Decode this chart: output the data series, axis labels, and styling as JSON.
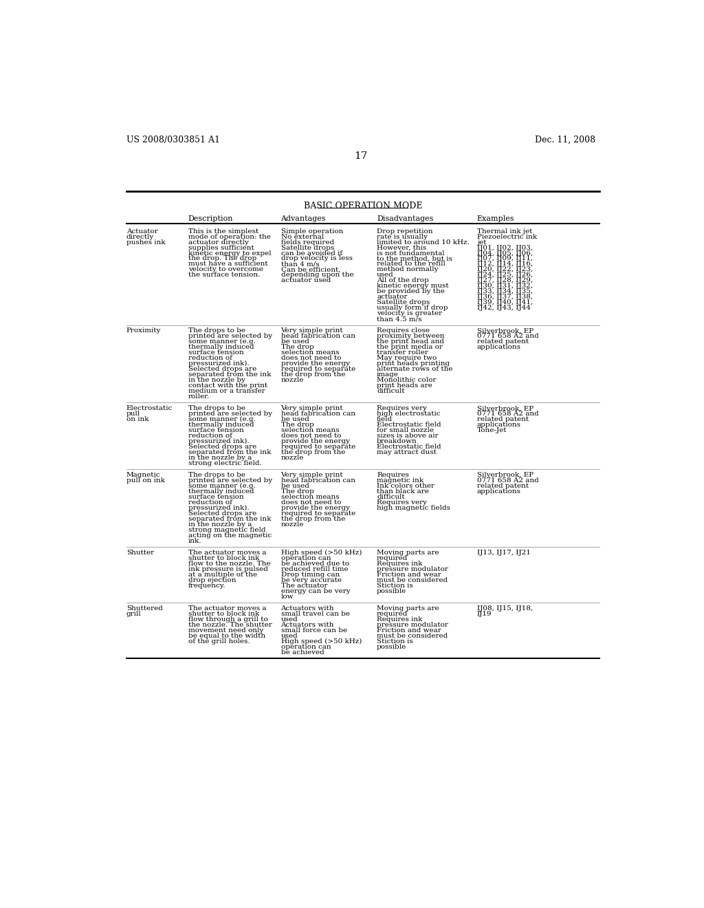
{
  "header_left": "US 2008/0303851 A1",
  "header_right": "Dec. 11, 2008",
  "page_number": "17",
  "table_title": "BASIC OPERATION MODE",
  "col_headers": [
    "Description",
    "Advantages",
    "Disadvantages",
    "Examples"
  ],
  "bg_color": "#ffffff",
  "text_color": "#000000",
  "font_size": 7.5,
  "rows": [
    {
      "mode": "Actuator\ndirectly\npushes ink",
      "description": "This is the simplest\nmode of operation: the\nactuator directly\nsupplies sufficient\nkinetic energy to expel\nthe drop. The drop\nmust have a sufficient\nvelocity to overcome\nthe surface tension.",
      "advantages": "Simple operation\nNo external\nfields required\nSatellite drops\ncan be avoided if\ndrop velocity is less\nthan 4 m/s\nCan be efficient,\ndepending upon the\nactuator used",
      "disadvantages": "Drop repetition\nrate is usually\nlimited to around 10 kHz.\nHowever, this\nis not fundamental\nto the method, but is\nrelated to the refill\nmethod normally\nused\nAll of the drop\nkinetic energy must\nbe provided by the\nactuator\nSatellite drops\nusually form if drop\nvelocity is greater\nthan 4.5 m/s",
      "examples": "Thermal ink jet\nPiezoelectric ink\njet\nIJ01, IJ02, IJ03,\nIJ04, IJ05, IJ06,\nIJ07, IJ09, IJ11,\nIJ12, IJ14, IJ16,\nIJ20, IJ22, IJ23,\nIJ24, IJ25, IJ26,\nIJ27, IJ28, IJ29,\nIJ30, IJ31, IJ32,\nIJ33, IJ34, IJ35,\nIJ36, IJ37, IJ38,\nIJ39, IJ40, IJ41,\nIJ42, IJ43, IJ44"
    },
    {
      "mode": "Proximity",
      "description": "The drops to be\nprinted are selected by\nsome manner (e.g.\nthermally induced\nsurface tension\nreduction of\npressurized ink).\nSelected drops are\nseparated from the ink\nin the nozzle by\ncontact with the print\nmedium or a transfer\nroller.",
      "advantages": "Very simple print\nhead fabrication can\nbe used\nThe drop\nselection means\ndoes not need to\nprovide the energy\nrequired to separate\nthe drop from the\nnozzle",
      "disadvantages": "Requires close\nproximity between\nthe print head and\nthe print media or\ntransfer roller\nMay require two\nprint heads printing\nalternate rows of the\nimage\nMonolithic color\nprint heads are\ndifficult",
      "examples": "Silverbrook, EP\n0771 658 A2 and\nrelated patent\napplications"
    },
    {
      "mode": "Electrostatic\npull\non ink",
      "description": "The drops to be\nprinted are selected by\nsome manner (e.g.\nthermally induced\nsurface tension\nreduction of\npressurized ink).\nSelected drops are\nseparated from the ink\nin the nozzle by a\nstrong electric field.",
      "advantages": "Very simple print\nhead fabrication can\nbe used\nThe drop\nselection means\ndoes not need to\nprovide the energy\nrequired to separate\nthe drop from the\nnozzle",
      "disadvantages": "Requires very\nhigh electrostatic\nfield\nElectrostatic field\nfor small nozzle\nsizes is above air\nbreakdown\nElectrostatic field\nmay attract dust",
      "examples": "Silverbrook, EP\n0771 658 A2 and\nrelated patent\napplications\nTone-Jet"
    },
    {
      "mode": "Magnetic\npull on ink",
      "description": "The drops to be\nprinted are selected by\nsome manner (e.g.\nthermally induced\nsurface tension\nreduction of\npressurized ink).\nSelected drops are\nseparated from the ink\nin the nozzle by a\nstrong magnetic field\nacting on the magnetic\nink.",
      "advantages": "Very simple print\nhead fabrication can\nbe used\nThe drop\nselection means\ndoes not need to\nprovide the energy\nrequired to separate\nthe drop from the\nnozzle",
      "disadvantages": "Requires\nmagnetic ink\nInk colors other\nthan black are\ndifficult\nRequires very\nhigh magnetic fields",
      "examples": "Silverbrook, EP\n0771 658 A2 and\nrelated patent\napplications"
    },
    {
      "mode": "Shutter",
      "description": "The actuator moves a\nshutter to block ink\nflow to the nozzle. The\nink pressure is pulsed\nat a multiple of the\ndrop ejection\nfrequency.",
      "advantages": "High speed (>50 kHz)\noperation can\nbe achieved due to\nreduced refill time\nDrop timing can\nbe very accurate\nThe actuator\nenergy can be very\nlow",
      "disadvantages": "Moving parts are\nrequired\nRequires ink\npressure modulator\nFriction and wear\nmust be considered\nStiction is\npossible",
      "examples": "IJ13, IJ17, IJ21"
    },
    {
      "mode": "Shuttered\ngrill",
      "description": "The actuator moves a\nshutter to block ink\nflow through a grill to\nthe nozzle. The shutter\nmovement need only\nbe equal to the width\nof the grill holes.",
      "advantages": "Actuators with\nsmall travel can be\nused\nActuators with\nsmall force can be\nused\nHigh speed (>50 kHz)\noperation can\nbe achieved",
      "disadvantages": "Moving parts are\nrequired\nRequires ink\npressure modulator\nFriction and wear\nmust be considered\nStiction is\npossible",
      "examples": "IJ08, IJ15, IJ18,\nIJ19"
    }
  ]
}
